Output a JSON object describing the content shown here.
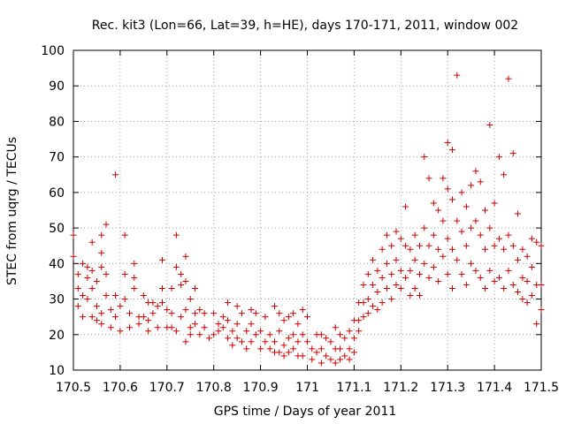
{
  "chart_data": {
    "type": "scatter",
    "title": "Rec. kit3 (Lon=66, Lat=39, h=HE), days 170-171, 2011, window 002",
    "xlabel": "GPS time / Days of year 2011",
    "ylabel": "STEC from uqrg / TECUs",
    "xlim": [
      170.5,
      171.5
    ],
    "ylim": [
      10,
      100
    ],
    "xticks": [
      170.5,
      170.6,
      170.7,
      170.8,
      170.9,
      171.0,
      171.1,
      171.2,
      171.3,
      171.4,
      171.5
    ],
    "xtick_labels": [
      "170.5",
      "170.6",
      "170.7",
      "170.8",
      "170.9",
      "171",
      "171.1",
      "171.2",
      "171.3",
      "171.4",
      "171.5"
    ],
    "yticks": [
      10,
      20,
      30,
      40,
      50,
      60,
      70,
      80,
      90,
      100
    ],
    "ytick_labels": [
      "10",
      "20",
      "30",
      "40",
      "50",
      "60",
      "70",
      "80",
      "90",
      "100"
    ],
    "grid": true,
    "marker": "plus",
    "color": "#cc0000",
    "points": [
      [
        170.5,
        48
      ],
      [
        170.5,
        42
      ],
      [
        170.51,
        37
      ],
      [
        170.51,
        33
      ],
      [
        170.51,
        28
      ],
      [
        170.52,
        25
      ],
      [
        170.52,
        31
      ],
      [
        170.52,
        40
      ],
      [
        170.53,
        39
      ],
      [
        170.53,
        36
      ],
      [
        170.53,
        30
      ],
      [
        170.54,
        46
      ],
      [
        170.54,
        38
      ],
      [
        170.54,
        33
      ],
      [
        170.54,
        25
      ],
      [
        170.55,
        35
      ],
      [
        170.55,
        28
      ],
      [
        170.55,
        24
      ],
      [
        170.56,
        48
      ],
      [
        170.56,
        43
      ],
      [
        170.56,
        39
      ],
      [
        170.56,
        26
      ],
      [
        170.56,
        23
      ],
      [
        170.57,
        51
      ],
      [
        170.57,
        37
      ],
      [
        170.57,
        31
      ],
      [
        170.58,
        22
      ],
      [
        170.58,
        27
      ],
      [
        170.59,
        65
      ],
      [
        170.59,
        31
      ],
      [
        170.59,
        25
      ],
      [
        170.6,
        21
      ],
      [
        170.6,
        28
      ],
      [
        170.61,
        48
      ],
      [
        170.61,
        37
      ],
      [
        170.61,
        30
      ],
      [
        170.62,
        26
      ],
      [
        170.62,
        22
      ],
      [
        170.63,
        40
      ],
      [
        170.63,
        36
      ],
      [
        170.63,
        33
      ],
      [
        170.64,
        25
      ],
      [
        170.64,
        23
      ],
      [
        170.65,
        31
      ],
      [
        170.65,
        25
      ],
      [
        170.66,
        29
      ],
      [
        170.66,
        24
      ],
      [
        170.66,
        21
      ],
      [
        170.67,
        29
      ],
      [
        170.67,
        26
      ],
      [
        170.68,
        28
      ],
      [
        170.68,
        22
      ],
      [
        170.69,
        41
      ],
      [
        170.69,
        33
      ],
      [
        170.69,
        29
      ],
      [
        170.7,
        27
      ],
      [
        170.7,
        22
      ],
      [
        170.71,
        33
      ],
      [
        170.71,
        26
      ],
      [
        170.71,
        22
      ],
      [
        170.72,
        48
      ],
      [
        170.72,
        39
      ],
      [
        170.72,
        21
      ],
      [
        170.73,
        37
      ],
      [
        170.73,
        34
      ],
      [
        170.73,
        25
      ],
      [
        170.74,
        42
      ],
      [
        170.74,
        35
      ],
      [
        170.74,
        27
      ],
      [
        170.74,
        18
      ],
      [
        170.75,
        30
      ],
      [
        170.75,
        22
      ],
      [
        170.75,
        20
      ],
      [
        170.76,
        33
      ],
      [
        170.76,
        26
      ],
      [
        170.76,
        23
      ],
      [
        170.77,
        27
      ],
      [
        170.77,
        20
      ],
      [
        170.78,
        26
      ],
      [
        170.78,
        22
      ],
      [
        170.79,
        19
      ],
      [
        170.8,
        26
      ],
      [
        170.8,
        20
      ],
      [
        170.81,
        23
      ],
      [
        170.81,
        21
      ],
      [
        170.82,
        25
      ],
      [
        170.82,
        22
      ],
      [
        170.83,
        29
      ],
      [
        170.83,
        24
      ],
      [
        170.83,
        19
      ],
      [
        170.84,
        21
      ],
      [
        170.84,
        17
      ],
      [
        170.85,
        28
      ],
      [
        170.85,
        23
      ],
      [
        170.85,
        19
      ],
      [
        170.86,
        26
      ],
      [
        170.86,
        18
      ],
      [
        170.87,
        21
      ],
      [
        170.87,
        16
      ],
      [
        170.88,
        27
      ],
      [
        170.88,
        23
      ],
      [
        170.88,
        18
      ],
      [
        170.89,
        26
      ],
      [
        170.89,
        20
      ],
      [
        170.9,
        21
      ],
      [
        170.9,
        16
      ],
      [
        170.91,
        25
      ],
      [
        170.91,
        18
      ],
      [
        170.92,
        20
      ],
      [
        170.92,
        16
      ],
      [
        170.93,
        28
      ],
      [
        170.93,
        18
      ],
      [
        170.93,
        15
      ],
      [
        170.94,
        26
      ],
      [
        170.94,
        21
      ],
      [
        170.94,
        15
      ],
      [
        170.95,
        24
      ],
      [
        170.95,
        17
      ],
      [
        170.95,
        14
      ],
      [
        170.96,
        25
      ],
      [
        170.96,
        19
      ],
      [
        170.96,
        15
      ],
      [
        170.97,
        26
      ],
      [
        170.97,
        20
      ],
      [
        170.97,
        16
      ],
      [
        170.98,
        23
      ],
      [
        170.98,
        18
      ],
      [
        170.98,
        14
      ],
      [
        170.99,
        27
      ],
      [
        170.99,
        20
      ],
      [
        170.99,
        14
      ],
      [
        171.0,
        25
      ],
      [
        171.0,
        18
      ],
      [
        171.01,
        16
      ],
      [
        171.01,
        13
      ],
      [
        171.02,
        20
      ],
      [
        171.02,
        15
      ],
      [
        171.03,
        20
      ],
      [
        171.03,
        16
      ],
      [
        171.03,
        12
      ],
      [
        171.04,
        19
      ],
      [
        171.04,
        14
      ],
      [
        171.05,
        18
      ],
      [
        171.05,
        13
      ],
      [
        171.06,
        22
      ],
      [
        171.06,
        16
      ],
      [
        171.06,
        12
      ],
      [
        171.07,
        20
      ],
      [
        171.07,
        16
      ],
      [
        171.07,
        13
      ],
      [
        171.08,
        19
      ],
      [
        171.08,
        14
      ],
      [
        171.09,
        21
      ],
      [
        171.09,
        16
      ],
      [
        171.09,
        13
      ],
      [
        171.1,
        24
      ],
      [
        171.1,
        19
      ],
      [
        171.1,
        15
      ],
      [
        171.11,
        29
      ],
      [
        171.11,
        24
      ],
      [
        171.11,
        21
      ],
      [
        171.12,
        34
      ],
      [
        171.12,
        29
      ],
      [
        171.12,
        25
      ],
      [
        171.13,
        37
      ],
      [
        171.13,
        30
      ],
      [
        171.13,
        26
      ],
      [
        171.14,
        41
      ],
      [
        171.14,
        34
      ],
      [
        171.14,
        28
      ],
      [
        171.15,
        38
      ],
      [
        171.15,
        32
      ],
      [
        171.15,
        27
      ],
      [
        171.16,
        44
      ],
      [
        171.16,
        36
      ],
      [
        171.16,
        29
      ],
      [
        171.17,
        48
      ],
      [
        171.17,
        40
      ],
      [
        171.17,
        33
      ],
      [
        171.18,
        45
      ],
      [
        171.18,
        37
      ],
      [
        171.18,
        30
      ],
      [
        171.19,
        49
      ],
      [
        171.19,
        41
      ],
      [
        171.19,
        34
      ],
      [
        171.2,
        47
      ],
      [
        171.2,
        38
      ],
      [
        171.2,
        33
      ],
      [
        171.21,
        56
      ],
      [
        171.21,
        45
      ],
      [
        171.21,
        36
      ],
      [
        171.22,
        44
      ],
      [
        171.22,
        38
      ],
      [
        171.22,
        31
      ],
      [
        171.23,
        48
      ],
      [
        171.23,
        41
      ],
      [
        171.23,
        33
      ],
      [
        171.24,
        45
      ],
      [
        171.24,
        37
      ],
      [
        171.24,
        31
      ],
      [
        171.25,
        70
      ],
      [
        171.25,
        50
      ],
      [
        171.25,
        40
      ],
      [
        171.26,
        64
      ],
      [
        171.26,
        45
      ],
      [
        171.26,
        36
      ],
      [
        171.27,
        57
      ],
      [
        171.27,
        48
      ],
      [
        171.27,
        39
      ],
      [
        171.28,
        55
      ],
      [
        171.28,
        44
      ],
      [
        171.28,
        35
      ],
      [
        171.29,
        64
      ],
      [
        171.29,
        52
      ],
      [
        171.29,
        42
      ],
      [
        171.3,
        74
      ],
      [
        171.3,
        61
      ],
      [
        171.3,
        47
      ],
      [
        171.3,
        37
      ],
      [
        171.31,
        72
      ],
      [
        171.31,
        58
      ],
      [
        171.31,
        44
      ],
      [
        171.31,
        33
      ],
      [
        171.32,
        93
      ],
      [
        171.32,
        52
      ],
      [
        171.32,
        41
      ],
      [
        171.33,
        60
      ],
      [
        171.33,
        49
      ],
      [
        171.33,
        37
      ],
      [
        171.34,
        56
      ],
      [
        171.34,
        45
      ],
      [
        171.34,
        34
      ],
      [
        171.35,
        62
      ],
      [
        171.35,
        50
      ],
      [
        171.35,
        40
      ],
      [
        171.36,
        66
      ],
      [
        171.36,
        52
      ],
      [
        171.36,
        38
      ],
      [
        171.37,
        63
      ],
      [
        171.37,
        48
      ],
      [
        171.37,
        36
      ],
      [
        171.38,
        55
      ],
      [
        171.38,
        44
      ],
      [
        171.38,
        33
      ],
      [
        171.39,
        79
      ],
      [
        171.39,
        50
      ],
      [
        171.39,
        38
      ],
      [
        171.4,
        57
      ],
      [
        171.4,
        45
      ],
      [
        171.4,
        35
      ],
      [
        171.41,
        70
      ],
      [
        171.41,
        47
      ],
      [
        171.41,
        36
      ],
      [
        171.42,
        65
      ],
      [
        171.42,
        44
      ],
      [
        171.42,
        33
      ],
      [
        171.43,
        92
      ],
      [
        171.43,
        48
      ],
      [
        171.43,
        38
      ],
      [
        171.44,
        71
      ],
      [
        171.44,
        45
      ],
      [
        171.44,
        34
      ],
      [
        171.45,
        54
      ],
      [
        171.45,
        41
      ],
      [
        171.45,
        32
      ],
      [
        171.46,
        44
      ],
      [
        171.46,
        36
      ],
      [
        171.46,
        30
      ],
      [
        171.47,
        42
      ],
      [
        171.47,
        35
      ],
      [
        171.47,
        29
      ],
      [
        171.48,
        47
      ],
      [
        171.48,
        39
      ],
      [
        171.48,
        31
      ],
      [
        171.49,
        46
      ],
      [
        171.49,
        34
      ],
      [
        171.49,
        23
      ],
      [
        171.5,
        45
      ],
      [
        171.5,
        34
      ],
      [
        171.5,
        27
      ]
    ]
  }
}
